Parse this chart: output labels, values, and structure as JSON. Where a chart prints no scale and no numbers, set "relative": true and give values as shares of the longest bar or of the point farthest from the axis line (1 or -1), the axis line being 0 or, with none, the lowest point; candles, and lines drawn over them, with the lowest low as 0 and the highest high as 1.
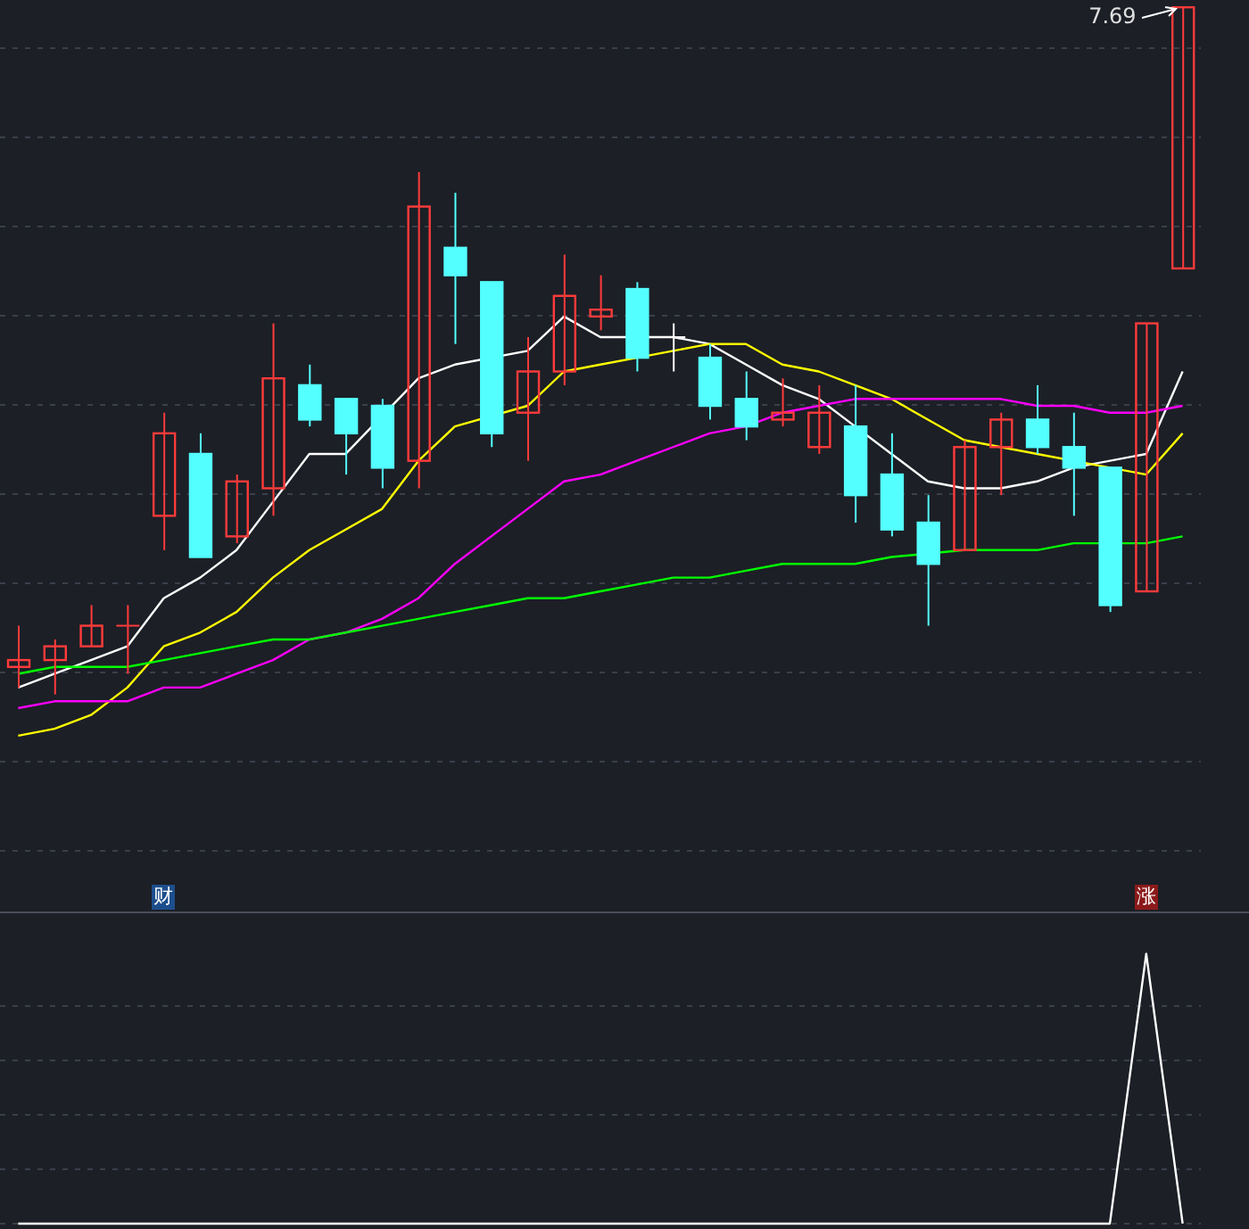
{
  "chart_data": [
    {
      "type": "candlestick",
      "relative": true,
      "grid": true,
      "annotations": [
        "7.69"
      ],
      "categories": [
        null,
        null,
        null,
        null,
        null,
        null,
        null,
        null,
        null,
        null,
        null,
        null,
        null,
        null,
        null,
        null,
        null,
        null,
        null,
        null,
        null,
        null,
        null,
        null,
        null,
        null,
        null,
        null,
        null,
        null,
        null,
        null,
        null
      ],
      "ohlc": [
        [
          0.04,
          0.1,
          0.01,
          0.05
        ],
        [
          0.05,
          0.08,
          0,
          0.07
        ],
        [
          0.07,
          0.13,
          0.07,
          0.1
        ],
        [
          0.1,
          0.13,
          0.03,
          0.1
        ],
        [
          0.26,
          0.41,
          0.21,
          0.38
        ],
        [
          0.35,
          0.38,
          0.2,
          0.2
        ],
        [
          0.23,
          0.32,
          0.22,
          0.31
        ],
        [
          0.3,
          0.54,
          0.26,
          0.46
        ],
        [
          0.45,
          0.48,
          0.39,
          0.4
        ],
        [
          0.43,
          0.43,
          0.32,
          0.38
        ],
        [
          0.42,
          0.43,
          0.3,
          0.33
        ],
        [
          0.34,
          0.76,
          0.3,
          0.71
        ],
        [
          0.65,
          0.73,
          0.51,
          0.61
        ],
        [
          0.6,
          0.6,
          0.36,
          0.38
        ],
        [
          0.41,
          0.52,
          0.34,
          0.47
        ],
        [
          0.47,
          0.64,
          0.45,
          0.58
        ],
        [
          0.55,
          0.61,
          0.53,
          0.56
        ],
        [
          0.59,
          0.6,
          0.47,
          0.49
        ],
        [
          0.52,
          0.54,
          0.47,
          0.52
        ],
        [
          0.49,
          0.51,
          0.4,
          0.42
        ],
        [
          0.43,
          0.47,
          0.37,
          0.39
        ],
        [
          0.4,
          0.46,
          0.39,
          0.41
        ],
        [
          0.36,
          0.45,
          0.35,
          0.41
        ],
        [
          0.39,
          0.45,
          0.25,
          0.29
        ],
        [
          0.32,
          0.38,
          0.23,
          0.24
        ],
        [
          0.25,
          0.29,
          0.1,
          0.19
        ],
        [
          0.21,
          0.37,
          0.21,
          0.36
        ],
        [
          0.36,
          0.41,
          0.29,
          0.4
        ],
        [
          0.4,
          0.45,
          0.35,
          0.36
        ],
        [
          0.36,
          0.41,
          0.26,
          0.33
        ],
        [
          0.33,
          0.33,
          0.12,
          0.13
        ],
        [
          0.15,
          0.54,
          0.15,
          0.54
        ],
        [
          0.62,
          1,
          0.62,
          1
        ]
      ],
      "colors": [
        "#ff3b3b",
        "#ff3b3b",
        "#ff3b3b",
        "#ff3b3b",
        "#ff3b3b",
        "#54ffff",
        "#ff3b3b",
        "#ff3b3b",
        "#54ffff",
        "#54ffff",
        "#54ffff",
        "#ff3b3b",
        "#54ffff",
        "#54ffff",
        "#ff3b3b",
        "#ff3b3b",
        "#ff3b3b",
        "#54ffff",
        "#ffffff",
        "#54ffff",
        "#54ffff",
        "#ff3b3b",
        "#ff3b3b",
        "#54ffff",
        "#54ffff",
        "#54ffff",
        "#ff3b3b",
        "#ff3b3b",
        "#54ffff",
        "#54ffff",
        "#54ffff",
        "#ff3b3b",
        "#ff3b3b"
      ],
      "series": [
        {
          "type": "line",
          "color": "#ffffff",
          "values": [
            0.01,
            0.03,
            0.05,
            0.07,
            0.14,
            0.17,
            0.21,
            0.28,
            0.35,
            0.35,
            null,
            0.46,
            0.48,
            null,
            0.5,
            0.55,
            0.52,
            null,
            0.52,
            0.51,
            0.48,
            0.45,
            0.43,
            0.39,
            0.35,
            0.31,
            0.3,
            0.3,
            0.31,
            0.33,
            null,
            0.35,
            0.47
          ]
        },
        {
          "type": "line",
          "color": "#ffff00",
          "values": [
            -0.06,
            -0.05,
            -0.03,
            0.01,
            0.07,
            0.09,
            0.12,
            0.17,
            0.21,
            0.24,
            0.27,
            0.34,
            0.39,
            null,
            0.42,
            0.47,
            0.48,
            0.49,
            0.5,
            0.51,
            0.51,
            0.48,
            0.47,
            0.45,
            0.43,
            0.4,
            0.37,
            0.36,
            0.35,
            null,
            null,
            0.32,
            0.38
          ]
        },
        {
          "type": "line",
          "color": "#ff00ff",
          "values": [
            -0.02,
            -0.01,
            -0.01,
            -0.01,
            0.01,
            0.01,
            0.03,
            0.05,
            0.08,
            0.09,
            0.11,
            0.14,
            0.19,
            0.23,
            0.27,
            0.31,
            0.32,
            0.34,
            0.36,
            0.38,
            0.39,
            0.41,
            0.42,
            0.43,
            0.43,
            0.43,
            0.43,
            0.43,
            0.42,
            0.42,
            0.41,
            0.41,
            0.42
          ]
        },
        {
          "type": "line",
          "color": "#00ff00",
          "values": [
            0.03,
            0.04,
            0.04,
            0.04,
            0.05,
            0.06,
            0.07,
            0.08,
            0.08,
            0.09,
            0.1,
            0.11,
            0.12,
            0.13,
            0.14,
            0.14,
            0.15,
            0.16,
            0.17,
            0.17,
            0.18,
            0.19,
            0.19,
            0.19,
            0.2,
            null,
            0.21,
            0.21,
            0.21,
            0.22,
            null,
            0.22,
            0.23
          ]
        }
      ]
    },
    {
      "type": "line",
      "relative": true,
      "grid": true,
      "annotations": [
        "财",
        "涨"
      ],
      "categories": [
        null,
        null,
        null,
        null,
        null,
        null,
        null,
        null,
        null,
        null,
        null,
        null,
        null,
        null,
        null,
        null,
        null,
        null,
        null,
        null,
        null,
        null,
        null,
        null,
        null,
        null,
        null,
        null,
        null,
        null,
        null,
        null,
        null
      ],
      "series": [
        {
          "color": "#ffffff",
          "values": [
            0,
            0,
            0,
            0,
            0,
            0,
            0,
            0,
            0,
            0,
            0,
            0,
            0,
            0,
            0,
            0,
            0,
            0,
            0,
            0,
            0,
            0,
            0,
            0,
            0,
            0,
            0,
            0,
            0,
            0,
            0,
            1,
            0
          ]
        }
      ]
    }
  ]
}
